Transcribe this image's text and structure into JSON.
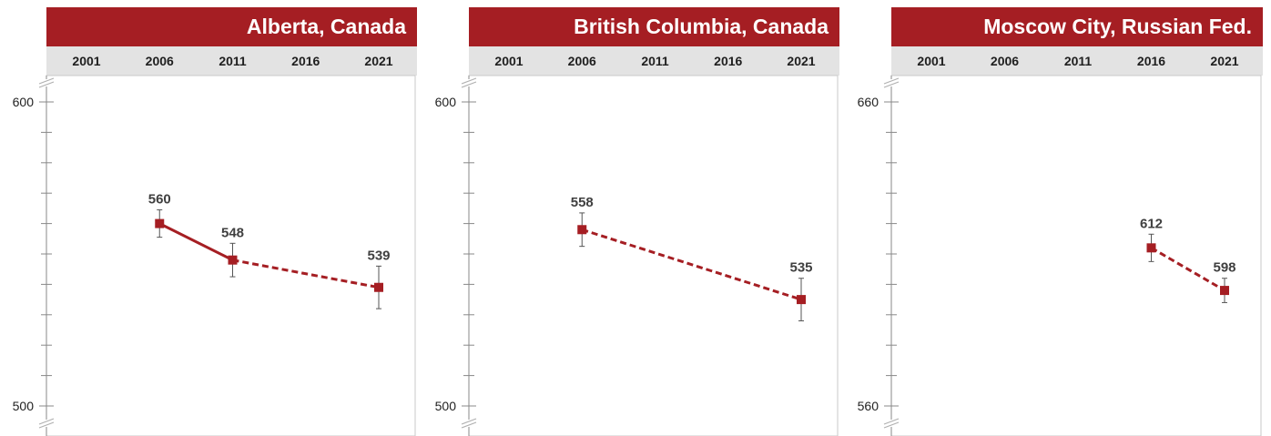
{
  "chart_data": [
    {
      "type": "line",
      "title": "Alberta, Canada",
      "x_ticks": [
        "2001",
        "2006",
        "2011",
        "2016",
        "2021"
      ],
      "ylim": [
        500,
        600
      ],
      "y_tick_labels": [
        "600",
        "500"
      ],
      "axis_break": true,
      "points": [
        {
          "x": "2006",
          "y": 560,
          "label": "560",
          "err": 4.5
        },
        {
          "x": "2011",
          "y": 548,
          "label": "548",
          "err": 5.5
        },
        {
          "x": "2021",
          "y": 539,
          "label": "539",
          "err": 7
        }
      ],
      "segments": [
        {
          "from": 0,
          "to": 1,
          "style": "solid"
        },
        {
          "from": 1,
          "to": 2,
          "style": "dashed"
        }
      ]
    },
    {
      "type": "line",
      "title": "British Columbia, Canada",
      "x_ticks": [
        "2001",
        "2006",
        "2011",
        "2016",
        "2021"
      ],
      "ylim": [
        500,
        600
      ],
      "y_tick_labels": [
        "600",
        "500"
      ],
      "axis_break": true,
      "points": [
        {
          "x": "2006",
          "y": 558,
          "label": "558",
          "err": 5.5
        },
        {
          "x": "2021",
          "y": 535,
          "label": "535",
          "err": 7
        }
      ],
      "segments": [
        {
          "from": 0,
          "to": 1,
          "style": "dashed"
        }
      ]
    },
    {
      "type": "line",
      "title": "Moscow City, Russian Fed.",
      "x_ticks": [
        "2001",
        "2006",
        "2011",
        "2016",
        "2021"
      ],
      "ylim": [
        560,
        660
      ],
      "y_tick_labels": [
        "660",
        "560"
      ],
      "axis_break": true,
      "points": [
        {
          "x": "2016",
          "y": 612,
          "label": "612",
          "err": 4.5
        },
        {
          "x": "2021",
          "y": 598,
          "label": "598",
          "err": 4
        }
      ],
      "segments": [
        {
          "from": 0,
          "to": 1,
          "style": "dashed"
        }
      ]
    }
  ],
  "colors": {
    "accent": "#a51e23",
    "header_band": "#e3e3e3",
    "axis": "#888888",
    "label": "#404040"
  }
}
